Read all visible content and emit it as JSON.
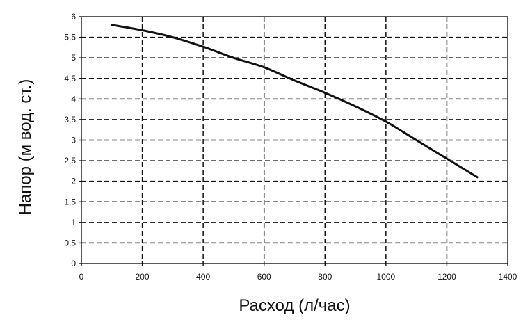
{
  "chart_data": {
    "type": "line",
    "xlabel": "Расход (л/час)",
    "ylabel": "Напор (м вод. ст.)",
    "xlim": [
      0,
      1400
    ],
    "ylim": [
      0,
      6
    ],
    "grid": true,
    "x_ticks": [
      0,
      200,
      400,
      600,
      800,
      1000,
      1200,
      1400
    ],
    "x_tick_labels": [
      "0",
      "200",
      "400",
      "600",
      "800",
      "1000",
      "1200",
      "1400"
    ],
    "y_ticks": [
      0,
      0.5,
      1,
      1.5,
      2,
      2.5,
      3,
      3.5,
      4,
      4.5,
      5,
      5.5,
      6
    ],
    "y_tick_labels": [
      "0",
      "0,5",
      "1",
      "1,5",
      "2",
      "2,5",
      "3",
      "3,5",
      "4",
      "4,5",
      "5",
      "5,5",
      "6"
    ],
    "series": [
      {
        "x": [
          100,
          200,
          300,
          400,
          500,
          600,
          700,
          800,
          900,
          1000,
          1100,
          1200,
          1300
        ],
        "y": [
          5.8,
          5.67,
          5.5,
          5.27,
          5.0,
          4.77,
          4.45,
          4.15,
          3.82,
          3.45,
          3.0,
          2.55,
          2.1
        ]
      }
    ],
    "colors": {
      "line": "#111111",
      "grid": "#111111",
      "background": "#ffffff"
    }
  }
}
